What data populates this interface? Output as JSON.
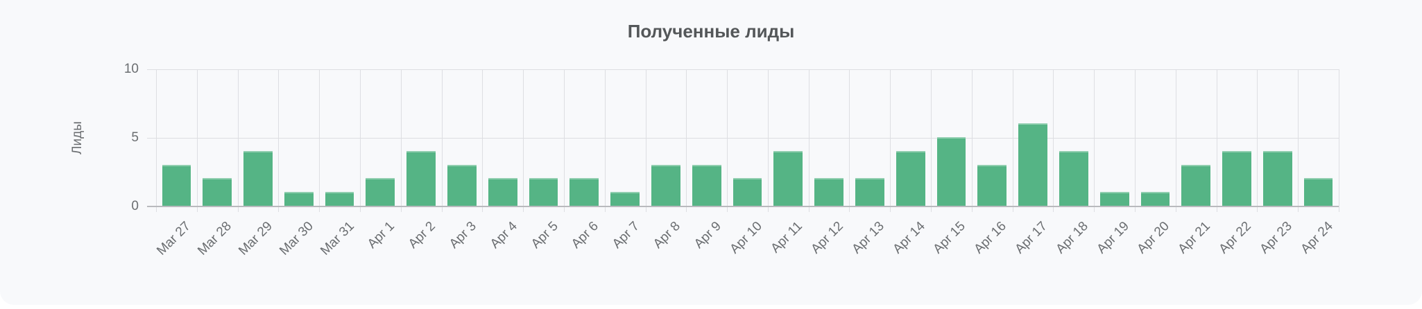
{
  "page": {
    "background_color": "#ffffff",
    "card_background_color": "#f8f9fb"
  },
  "chart_data": {
    "type": "bar",
    "title": "Полученные лиды",
    "xlabel": "",
    "ylabel": "Лиды",
    "categories": [
      "Mar 27",
      "Mar 28",
      "Mar 29",
      "Mar 30",
      "Mar 31",
      "Apr 1",
      "Apr 2",
      "Apr 3",
      "Apr 4",
      "Apr 5",
      "Apr 6",
      "Apr 7",
      "Apr 8",
      "Apr 9",
      "Apr 10",
      "Apr 11",
      "Apr 12",
      "Apr 13",
      "Apr 14",
      "Apr 15",
      "Apr 16",
      "Apr 17",
      "Apr 18",
      "Apr 19",
      "Apr 20",
      "Apr 21",
      "Apr 22",
      "Apr 23",
      "Apr 24"
    ],
    "values": [
      3,
      2,
      4,
      1,
      1,
      2,
      4,
      3,
      2,
      2,
      2,
      1,
      3,
      3,
      2,
      4,
      2,
      2,
      4,
      5,
      3,
      6,
      4,
      1,
      1,
      3,
      4,
      4,
      2
    ],
    "ylim": [
      0,
      10
    ],
    "yticks": [
      0,
      5,
      10
    ],
    "grid": true,
    "legend_position": "none",
    "bar_color": "#55b485",
    "gridline_color": "#dddee2",
    "axis_line_color": "#b9babe",
    "tick_label_color": "#6b6e71",
    "title_color": "#545759"
  }
}
